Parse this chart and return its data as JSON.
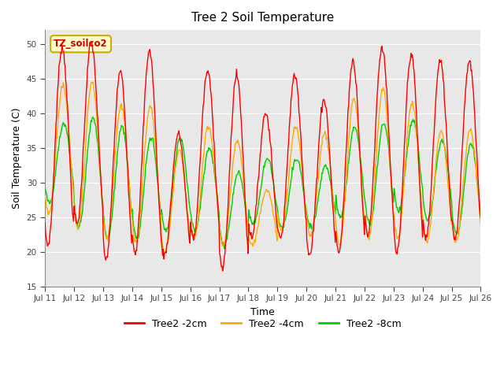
{
  "title": "Tree 2 Soil Temperature",
  "xlabel": "Time",
  "ylabel": "Soil Temperature (C)",
  "ylim": [
    15,
    52
  ],
  "yticks": [
    15,
    20,
    25,
    30,
    35,
    40,
    45,
    50
  ],
  "annotation_text": "TZ_soilco2",
  "annotation_bg": "#ffffcc",
  "annotation_border": "#ccaa00",
  "fig_bg": "#ffffff",
  "plot_bg": "#e8e8e8",
  "line_colors": {
    "2cm": "#ff0000",
    "4cm": "#ffaa00",
    "8cm": "#00cc00"
  },
  "legend_labels": [
    "Tree2 -2cm",
    "Tree2 -4cm",
    "Tree2 -8cm"
  ],
  "x_tick_labels": [
    "Jul 11",
    "Jul 12",
    "Jul 13",
    "Jul 14",
    "Jul 15",
    "Jul 16",
    "Jul 17",
    "Jul 18",
    "Jul 19",
    "Jul 20",
    "Jul 21",
    "Jul 22",
    "Jul 23",
    "Jul 24",
    "Jul 25",
    "Jul 26"
  ],
  "days": 15,
  "points_per_day": 48,
  "day_peaks_2cm": [
    49.5,
    50.2,
    46.0,
    49.0,
    37.0,
    46.0,
    45.5,
    40.0,
    45.5,
    42.0,
    47.5,
    49.5,
    48.5,
    47.5,
    47.5
  ],
  "day_troughs_2cm": [
    21.0,
    24.0,
    19.0,
    20.0,
    19.5,
    22.0,
    17.5,
    22.2,
    22.0,
    19.5,
    20.0,
    22.5,
    19.8,
    22.0,
    22.0
  ],
  "day_peaks_4cm": [
    44.0,
    44.5,
    41.0,
    41.0,
    34.5,
    38.0,
    36.0,
    29.0,
    38.0,
    37.0,
    42.0,
    43.5,
    41.5,
    37.5,
    37.5
  ],
  "day_troughs_4cm": [
    25.5,
    23.5,
    22.0,
    21.5,
    20.0,
    22.0,
    21.0,
    21.0,
    23.0,
    22.5,
    21.0,
    22.0,
    22.0,
    21.5,
    21.5
  ],
  "day_peaks_8cm": [
    38.5,
    39.5,
    38.0,
    36.5,
    36.5,
    35.0,
    31.5,
    33.5,
    33.5,
    32.5,
    38.0,
    38.5,
    39.0,
    36.0,
    35.5
  ],
  "day_troughs_8cm": [
    27.0,
    23.5,
    22.0,
    22.0,
    23.0,
    23.0,
    21.0,
    24.0,
    23.5,
    23.5,
    25.0,
    24.0,
    26.0,
    24.5,
    22.5
  ],
  "peak_offsets": [
    0.0,
    0.04,
    0.08
  ]
}
